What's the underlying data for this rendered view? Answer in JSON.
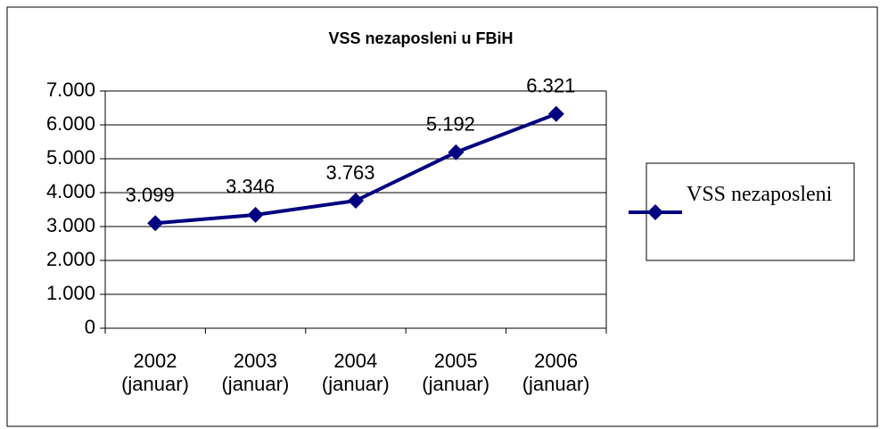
{
  "chart_data": {
    "type": "line",
    "title": "VSS nezaposleni u FBiH",
    "categories": [
      "2002 (januar)",
      "2003 (januar)",
      "2004 (januar)",
      "2005 (januar)",
      "2006 (januar)"
    ],
    "series": [
      {
        "name": "VSS nezaposleni",
        "color": "#000080",
        "values": [
          3099,
          3346,
          3763,
          5192,
          6321
        ],
        "value_labels": [
          "3.099",
          "3.346",
          "3.763",
          "5.192",
          "6.321"
        ]
      }
    ],
    "ylim": [
      0,
      7000
    ],
    "yticks": [
      0,
      {
        "value": 1000,
        "label": "1.000"
      },
      {
        "value": 2000,
        "label": "2.000"
      },
      {
        "value": 3000,
        "label": "3.000"
      },
      {
        "value": 4000,
        "label": "4.000"
      },
      {
        "value": 5000,
        "label": "5.000"
      },
      {
        "value": 6000,
        "label": "6.000"
      },
      {
        "value": 7000,
        "label": "7.000"
      }
    ],
    "grid": true,
    "legend": "right"
  }
}
